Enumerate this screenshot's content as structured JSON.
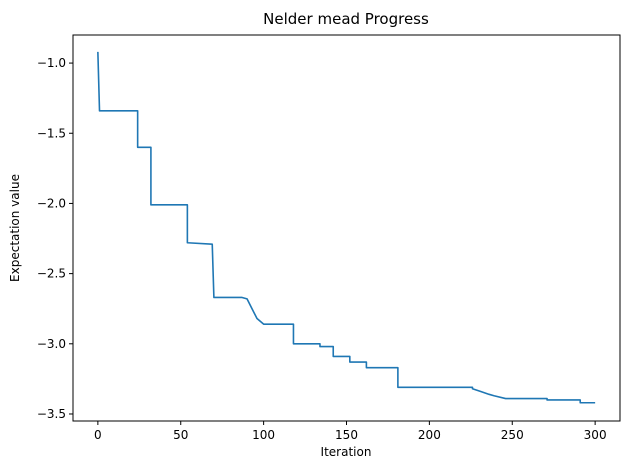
{
  "chart_data": {
    "type": "line",
    "title": "Nelder mead Progress",
    "xlabel": "Iteration",
    "ylabel": "Expectation value",
    "xlim": [
      -15,
      315
    ],
    "ylim": [
      -3.55,
      -0.8
    ],
    "x_ticks": [
      0,
      50,
      100,
      150,
      200,
      250,
      300
    ],
    "y_ticks": [
      -1.0,
      -1.5,
      -2.0,
      -2.5,
      -3.0,
      -3.5
    ],
    "x_tick_labels": [
      "0",
      "50",
      "100",
      "150",
      "200",
      "250",
      "300"
    ],
    "y_tick_labels": [
      "−1.0",
      "−1.5",
      "−2.0",
      "−2.5",
      "−3.0",
      "−3.5"
    ],
    "grid": false,
    "line_color": "#1f77b4",
    "series": [
      {
        "x": [
          0,
          1,
          24,
          24,
          32,
          32,
          54,
          54,
          69,
          70,
          87,
          90,
          90,
          93,
          93,
          96,
          96,
          100,
          100,
          104,
          104,
          118,
          118,
          134,
          134,
          142,
          142,
          152,
          152,
          162,
          162,
          181,
          181,
          204,
          204,
          226,
          226,
          231,
          231,
          236,
          236,
          239,
          239,
          246,
          246,
          271,
          271,
          291,
          291,
          300
        ],
        "y": [
          -0.92,
          -1.34,
          -1.34,
          -1.6,
          -1.6,
          -2.01,
          -2.01,
          -2.28,
          -2.29,
          -2.67,
          -2.67,
          -2.68,
          -2.68,
          -2.75,
          -2.75,
          -2.82,
          -2.82,
          -2.86,
          -2.86,
          -2.86,
          -2.86,
          -2.86,
          -3.0,
          -3.0,
          -3.02,
          -3.02,
          -3.09,
          -3.09,
          -3.13,
          -3.13,
          -3.17,
          -3.17,
          -3.31,
          -3.31,
          -3.31,
          -3.31,
          -3.32,
          -3.34,
          -3.34,
          -3.36,
          -3.36,
          -3.37,
          -3.37,
          -3.39,
          -3.39,
          -3.39,
          -3.4,
          -3.4,
          -3.42,
          -3.42
        ]
      }
    ]
  }
}
